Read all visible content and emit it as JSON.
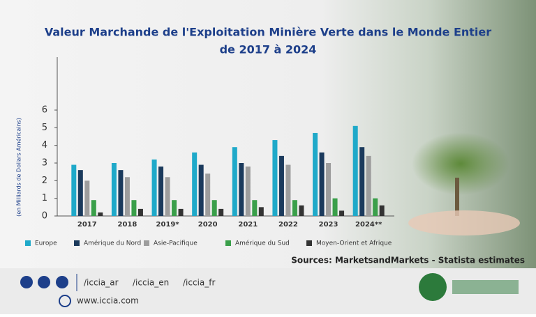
{
  "chart_data": {
    "type": "bar",
    "title": "Valeur Marchande de l'Exploitation Minière Verte dans le Monde Entier",
    "subtitle": "de 2017 à 2024",
    "y_label": "(en Milliards de Dollars Américains)",
    "categories": [
      "2017",
      "2018",
      "2019*",
      "2020",
      "2021",
      "2022",
      "2023",
      "2024**"
    ],
    "series": [
      {
        "name": "Europe",
        "color": "#1fa9c9",
        "values": [
          2.9,
          3.0,
          3.2,
          3.6,
          3.9,
          4.3,
          4.7,
          5.1
        ]
      },
      {
        "name": "Amérique du Nord",
        "color": "#1b3a5c",
        "values": [
          2.6,
          2.6,
          2.8,
          2.9,
          3.0,
          3.4,
          3.6,
          3.9
        ]
      },
      {
        "name": "Asie-Pacifique",
        "color": "#9d9d9d",
        "values": [
          2.0,
          2.2,
          2.2,
          2.4,
          2.8,
          2.9,
          3.0,
          3.4
        ]
      },
      {
        "name": "Amérique du Sud",
        "color": "#3a9f4a",
        "values": [
          0.9,
          0.9,
          0.9,
          0.9,
          0.9,
          0.9,
          1.0,
          1.0
        ]
      },
      {
        "name": "Moyen-Orient et Afrique",
        "color": "#333333",
        "values": [
          0.2,
          0.4,
          0.4,
          0.4,
          0.5,
          0.6,
          0.3,
          0.6
        ]
      }
    ],
    "ylim": [
      0,
      9
    ],
    "yticks": [
      0,
      1,
      2,
      3,
      4,
      5,
      6
    ],
    "grid": false,
    "source": "Sources: MarketsandMarkets - Statista estimates"
  },
  "footer": {
    "links": [
      "/iccia_ar",
      "/iccia_en",
      "/iccia_fr"
    ],
    "website": "www.iccia.com"
  }
}
